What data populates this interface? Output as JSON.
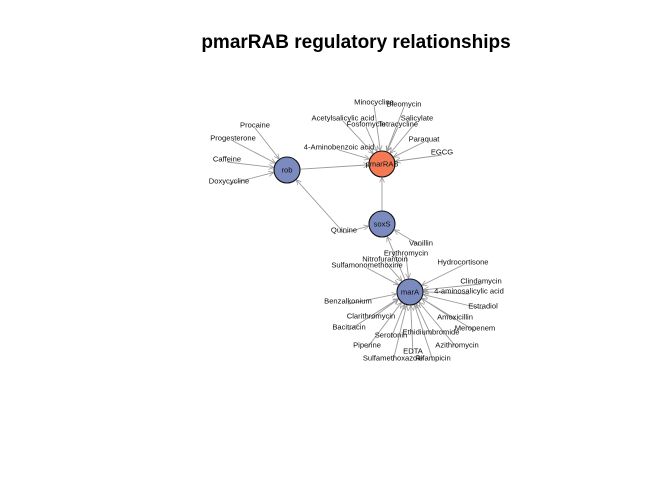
{
  "title": "pmarRAB regulatory relationships",
  "colors": {
    "hub": "#7b8bc0",
    "target": "#f47a55",
    "edge": "#9a9a9a",
    "node_border": "#111111"
  },
  "nodes": [
    {
      "id": "rob",
      "label": "rob",
      "kind": "hub"
    },
    {
      "id": "pmarRAB",
      "label": "pmarRAB",
      "kind": "target"
    },
    {
      "id": "soxS",
      "label": "soxS",
      "kind": "hub"
    },
    {
      "id": "marA",
      "label": "marA",
      "kind": "hub"
    }
  ],
  "leaves": [
    {
      "label": "Procaine",
      "target": "rob"
    },
    {
      "label": "Progesterone",
      "target": "rob"
    },
    {
      "label": "Caffeine",
      "target": "rob"
    },
    {
      "label": "Doxycycline",
      "target": "rob"
    },
    {
      "label": "Quinine",
      "target": "rob"
    },
    {
      "label": "Minocycline",
      "target": "pmarRAB"
    },
    {
      "label": "Bleomycin",
      "target": "pmarRAB"
    },
    {
      "label": "Acetylsalicylic acid",
      "target": "pmarRAB"
    },
    {
      "label": "Fosfomycin",
      "target": "pmarRAB"
    },
    {
      "label": "Tetracycline",
      "target": "pmarRAB"
    },
    {
      "label": "Salicylate",
      "target": "pmarRAB"
    },
    {
      "label": "Paraquat",
      "target": "pmarRAB"
    },
    {
      "label": "EGCG",
      "target": "pmarRAB"
    },
    {
      "label": "4-Aminobenzoic acid",
      "target": "pmarRAB"
    },
    {
      "label": "Quinine",
      "target": "soxS"
    },
    {
      "label": "Vanillin",
      "target": "soxS"
    },
    {
      "label": "Erythromycin",
      "target": "marA"
    },
    {
      "label": "Nitrofurantoin",
      "target": "marA"
    },
    {
      "label": "Sulfamonomethoxine",
      "target": "marA"
    },
    {
      "label": "Hydrocortisone",
      "target": "marA"
    },
    {
      "label": "Clindamycin",
      "target": "marA"
    },
    {
      "label": "4-aminosalicylic acid",
      "target": "marA"
    },
    {
      "label": "Estradiol",
      "target": "marA"
    },
    {
      "label": "Benzalkonium",
      "target": "marA"
    },
    {
      "label": "Amoxicillin",
      "target": "marA"
    },
    {
      "label": "Clarithromycin",
      "target": "marA"
    },
    {
      "label": "Meropenem",
      "target": "marA"
    },
    {
      "label": "Bacitracin",
      "target": "marA"
    },
    {
      "label": "Serotonin",
      "target": "marA"
    },
    {
      "label": "Ethidiumbromide",
      "target": "marA"
    },
    {
      "label": "Azithromycin",
      "target": "marA"
    },
    {
      "label": "Piperine",
      "target": "marA"
    },
    {
      "label": "EDTA",
      "target": "marA"
    },
    {
      "label": "Sulfamethoxazole",
      "target": "marA"
    },
    {
      "label": "Rifampicin",
      "target": "marA"
    }
  ],
  "hub_edges": [
    {
      "from": "rob",
      "to": "pmarRAB"
    },
    {
      "from": "soxS",
      "to": "pmarRAB"
    },
    {
      "from": "marA",
      "to": "soxS"
    }
  ]
}
